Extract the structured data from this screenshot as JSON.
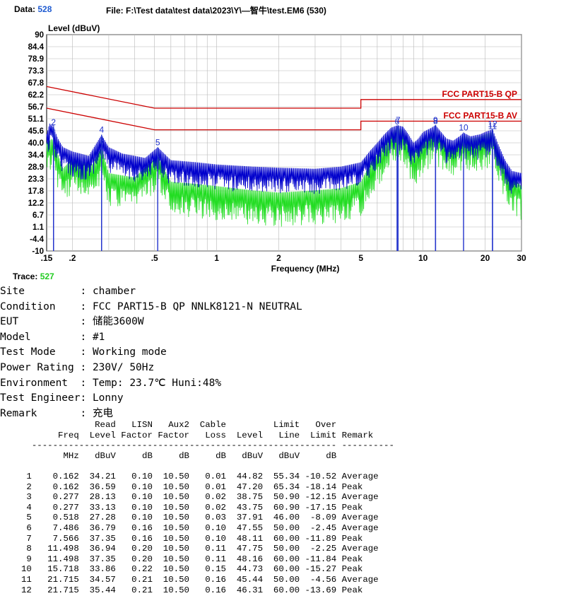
{
  "header": {
    "data_label": "Data:",
    "data_value": "528",
    "file_text": "File: F:\\Test data\\test data\\2023\\Y\\—智牛\\test.EM6  (530)"
  },
  "trace": {
    "label": "Trace:",
    "value": "527"
  },
  "colors": {
    "trace_main": "#0000cc",
    "trace_second": "#22dd22",
    "limit": "#cc0000",
    "marker": "#2233cc",
    "trace_value": "#22cc22",
    "data_value": "#1f5bd1"
  },
  "chart_data": {
    "type": "line",
    "ylabel": "Level (dBuV)",
    "xlabel": "Frequency (MHz)",
    "x_scale": "log",
    "xlim": [
      0.15,
      30
    ],
    "ylim": [
      -10,
      90
    ],
    "y_ticks": [
      "90",
      "84.4",
      "78.9",
      "73.3",
      "67.8",
      "62.2",
      "56.7",
      "51.1",
      "45.6",
      "40.0",
      "34.4",
      "28.9",
      "23.3",
      "17.8",
      "12.2",
      "6.7",
      "1.1",
      "-4.4",
      "-10"
    ],
    "x_ticks": [
      {
        "v": 0.15,
        "t": ".15"
      },
      {
        "v": 0.2,
        "t": ".2"
      },
      {
        "v": 0.5,
        "t": ".5"
      },
      {
        "v": 1,
        "t": "1"
      },
      {
        "v": 2,
        "t": "2"
      },
      {
        "v": 5,
        "t": "5"
      },
      {
        "v": 10,
        "t": "10"
      },
      {
        "v": 20,
        "t": "20"
      },
      {
        "v": 30,
        "t": "30"
      }
    ],
    "limits": [
      {
        "name": "FCC PART15-B QP",
        "points": [
          [
            0.15,
            66
          ],
          [
            0.5,
            56
          ],
          [
            5,
            56
          ],
          [
            5,
            60
          ],
          [
            30,
            60
          ]
        ]
      },
      {
        "name": "FCC PART15-B AV",
        "points": [
          [
            0.15,
            56
          ],
          [
            0.5,
            46
          ],
          [
            5,
            46
          ],
          [
            5,
            50
          ],
          [
            30,
            50
          ]
        ]
      }
    ],
    "series": [
      {
        "points": [
          [
            0.15,
            44
          ],
          [
            0.155,
            49
          ],
          [
            0.162,
            47.2
          ],
          [
            0.17,
            42
          ],
          [
            0.18,
            38
          ],
          [
            0.2,
            36
          ],
          [
            0.24,
            34
          ],
          [
            0.277,
            43.75
          ],
          [
            0.3,
            38
          ],
          [
            0.35,
            35
          ],
          [
            0.4,
            34
          ],
          [
            0.45,
            33
          ],
          [
            0.518,
            38
          ],
          [
            0.6,
            32
          ],
          [
            0.8,
            31
          ],
          [
            1,
            30
          ],
          [
            1.5,
            29
          ],
          [
            2,
            28.5
          ],
          [
            3,
            28
          ],
          [
            4,
            29
          ],
          [
            5,
            31
          ],
          [
            5.5,
            36
          ],
          [
            6,
            40
          ],
          [
            6.5,
            44
          ],
          [
            7,
            47
          ],
          [
            7.5,
            48.1
          ],
          [
            8,
            47.5
          ],
          [
            8.5,
            44
          ],
          [
            9,
            40
          ],
          [
            9.5,
            42
          ],
          [
            10,
            45
          ],
          [
            11,
            47
          ],
          [
            11.5,
            48.2
          ],
          [
            12,
            46
          ],
          [
            13,
            42
          ],
          [
            14,
            41
          ],
          [
            15,
            43
          ],
          [
            15.7,
            44.7
          ],
          [
            17,
            43
          ],
          [
            19,
            44
          ],
          [
            20,
            45
          ],
          [
            21.7,
            46.3
          ],
          [
            23,
            40
          ],
          [
            25,
            32
          ],
          [
            27,
            27
          ],
          [
            30,
            26
          ]
        ]
      },
      {
        "points": [
          [
            0.15,
            40
          ],
          [
            0.16,
            42
          ],
          [
            0.18,
            28
          ],
          [
            0.2,
            33
          ],
          [
            0.25,
            30
          ],
          [
            0.277,
            38
          ],
          [
            0.3,
            26
          ],
          [
            0.4,
            24
          ],
          [
            0.518,
            34
          ],
          [
            0.6,
            22
          ],
          [
            0.8,
            21
          ],
          [
            1,
            20
          ],
          [
            1.5,
            18
          ],
          [
            2,
            17
          ],
          [
            3,
            18
          ],
          [
            4,
            19
          ],
          [
            5,
            22
          ],
          [
            5.5,
            30
          ],
          [
            6,
            35
          ],
          [
            6.5,
            40
          ],
          [
            7,
            44
          ],
          [
            7.5,
            47
          ],
          [
            8,
            46
          ],
          [
            8.5,
            40
          ],
          [
            9,
            36
          ],
          [
            9.5,
            38
          ],
          [
            10,
            42
          ],
          [
            11,
            45
          ],
          [
            11.5,
            47
          ],
          [
            12,
            44
          ],
          [
            13,
            40
          ],
          [
            14,
            39
          ],
          [
            15,
            42
          ],
          [
            15.7,
            43.5
          ],
          [
            17,
            42
          ],
          [
            19,
            43
          ],
          [
            20,
            44
          ],
          [
            21.7,
            45
          ],
          [
            23,
            38
          ],
          [
            25,
            30
          ],
          [
            27,
            24
          ],
          [
            30,
            20
          ]
        ]
      }
    ],
    "markers": [
      {
        "n": "1",
        "x": 0.162,
        "y": 44.82
      },
      {
        "n": "2",
        "x": 0.162,
        "y": 47.2
      },
      {
        "n": "3",
        "x": 0.277,
        "y": 38.75
      },
      {
        "n": "4",
        "x": 0.277,
        "y": 43.75
      },
      {
        "n": "5",
        "x": 0.518,
        "y": 37.91
      },
      {
        "n": "6",
        "x": 7.486,
        "y": 47.55
      },
      {
        "n": "7",
        "x": 7.566,
        "y": 48.11
      },
      {
        "n": "8",
        "x": 11.498,
        "y": 47.75
      },
      {
        "n": "9",
        "x": 11.498,
        "y": 48.16
      },
      {
        "n": "10",
        "x": 15.718,
        "y": 44.73
      },
      {
        "n": "11",
        "x": 21.715,
        "y": 45.44
      },
      {
        "n": "12",
        "x": 21.715,
        "y": 46.31
      }
    ],
    "grid": true
  },
  "info": [
    {
      "k": "Site",
      "v": "chamber"
    },
    {
      "k": "Condition",
      "v": "FCC PART15-B QP NNLK8121-N NEUTRAL"
    },
    {
      "k": "EUT",
      "v": "储能3600W"
    },
    {
      "k": "Model",
      "v": "#1"
    },
    {
      "k": "Test Mode",
      "v": "Working mode"
    },
    {
      "k": "Power Rating",
      "v": "230V/ 50Hz"
    },
    {
      "k": "Environment",
      "v": "Temp: 23.7℃ Huni:48%"
    },
    {
      "k": "Test Engineer",
      "v": "Lonny"
    },
    {
      "k": "Remark",
      "v": "充电"
    }
  ],
  "table": {
    "headers_top": [
      "",
      "Read",
      "LISN",
      "Aux2",
      "Cable",
      "",
      "Limit",
      "Over",
      ""
    ],
    "headers": [
      "Freq",
      "Level",
      "Factor",
      "Factor",
      "Loss",
      "Level",
      "Line",
      "Limit",
      "Remark"
    ],
    "units": [
      "MHz",
      "dBuV",
      "dB",
      "dB",
      "dB",
      "dBuV",
      "dBuV",
      "dB",
      ""
    ],
    "rows": [
      [
        "1",
        "0.162",
        "34.21",
        "0.10",
        "10.50",
        "0.01",
        "44.82",
        "55.34",
        "-10.52",
        "Average"
      ],
      [
        "2",
        "0.162",
        "36.59",
        "0.10",
        "10.50",
        "0.01",
        "47.20",
        "65.34",
        "-18.14",
        "Peak"
      ],
      [
        "3",
        "0.277",
        "28.13",
        "0.10",
        "10.50",
        "0.02",
        "38.75",
        "50.90",
        "-12.15",
        "Average"
      ],
      [
        "4",
        "0.277",
        "33.13",
        "0.10",
        "10.50",
        "0.02",
        "43.75",
        "60.90",
        "-17.15",
        "Peak"
      ],
      [
        "5",
        "0.518",
        "27.28",
        "0.10",
        "10.50",
        "0.03",
        "37.91",
        "46.00",
        "-8.09",
        "Average"
      ],
      [
        "6",
        "7.486",
        "36.79",
        "0.16",
        "10.50",
        "0.10",
        "47.55",
        "50.00",
        "-2.45",
        "Average"
      ],
      [
        "7",
        "7.566",
        "37.35",
        "0.16",
        "10.50",
        "0.10",
        "48.11",
        "60.00",
        "-11.89",
        "Peak"
      ],
      [
        "8",
        "11.498",
        "36.94",
        "0.20",
        "10.50",
        "0.11",
        "47.75",
        "50.00",
        "-2.25",
        "Average"
      ],
      [
        "9",
        "11.498",
        "37.35",
        "0.20",
        "10.50",
        "0.11",
        "48.16",
        "60.00",
        "-11.84",
        "Peak"
      ],
      [
        "10",
        "15.718",
        "33.86",
        "0.22",
        "10.50",
        "0.15",
        "44.73",
        "60.00",
        "-15.27",
        "Peak"
      ],
      [
        "11",
        "21.715",
        "34.57",
        "0.21",
        "10.50",
        "0.16",
        "45.44",
        "50.00",
        "-4.56",
        "Average"
      ],
      [
        "12",
        "21.715",
        "35.44",
        "0.21",
        "10.50",
        "0.16",
        "46.31",
        "60.00",
        "-13.69",
        "Peak"
      ]
    ]
  }
}
